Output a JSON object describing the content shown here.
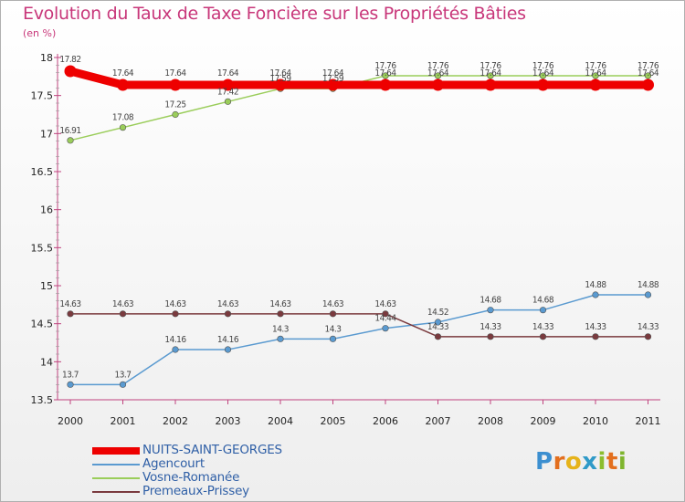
{
  "header": {
    "title": "Evolution du Taux de Taxe Foncière sur les Propriétés Bâties",
    "subtitle": "(en %)"
  },
  "logo": {
    "text": "Proxiti",
    "letter_colors": [
      "#3c8fd0",
      "#e36f1e",
      "#e6b31a",
      "#2f9ac8",
      "#8cbd2e",
      "#e36f1e",
      "#7fb52e"
    ]
  },
  "chart_data": {
    "type": "line",
    "title": "Evolution du Taux de Taxe Foncière sur les Propriétés Bâties",
    "ylabel": "(en %)",
    "xlabel": "",
    "ylim": [
      13.5,
      18
    ],
    "x": [
      "2000",
      "2001",
      "2002",
      "2003",
      "2004",
      "2005",
      "2006",
      "2007",
      "2008",
      "2009",
      "2010",
      "2011"
    ],
    "yticks": [
      "13.5",
      "14",
      "14.5",
      "15",
      "15.5",
      "16",
      "16.5",
      "17",
      "17.5",
      "18"
    ],
    "grid": false,
    "legend_position": "bottom-left",
    "series": [
      {
        "name": "Vosne-Romanée",
        "color": "#9acd5a",
        "values": [
          16.91,
          17.08,
          17.25,
          17.42,
          17.59,
          17.59,
          17.76,
          17.76,
          17.76,
          17.76,
          17.76,
          17.76
        ],
        "labels": [
          "16.91",
          "17.08",
          "17.25",
          "17.42",
          "17.59",
          "17.59",
          "17.76",
          "17.76",
          "17.76",
          "17.76",
          "17.76",
          "17.76"
        ]
      },
      {
        "name": "Agencourt",
        "color": "#5a9ad0",
        "values": [
          13.7,
          13.7,
          14.16,
          14.16,
          14.3,
          14.3,
          14.44,
          14.52,
          14.68,
          14.68,
          14.88,
          14.88
        ],
        "labels": [
          "13.7",
          "13.7",
          "14.16",
          "14.16",
          "14.3",
          "14.3",
          "14.44",
          "14.52",
          "14.68",
          "14.68",
          "14.88",
          "14.88"
        ]
      },
      {
        "name": "Premeaux-Prissey",
        "color": "#7a3a3e",
        "values": [
          14.63,
          14.63,
          14.63,
          14.63,
          14.63,
          14.63,
          14.63,
          14.33,
          14.33,
          14.33,
          14.33,
          14.33
        ],
        "labels": [
          "14.63",
          "14.63",
          "14.63",
          "14.63",
          "14.63",
          "14.63",
          "14.63",
          "14.33",
          "14.33",
          "14.33",
          "14.33",
          "14.33"
        ]
      },
      {
        "name": "NUITS-SAINT-GEORGES",
        "color": "#ee0000",
        "values": [
          17.82,
          17.64,
          17.64,
          17.64,
          17.64,
          17.64,
          17.64,
          17.64,
          17.64,
          17.64,
          17.64,
          17.64
        ],
        "labels": [
          "17.82",
          "17.64",
          "17.64",
          "17.64",
          "17.64",
          "17.64",
          "17.64",
          "17.64",
          "17.64",
          "17.64",
          "17.64",
          "17.64"
        ]
      }
    ],
    "legend": [
      {
        "name": "NUITS-SAINT-GEORGES",
        "color": "#ee0000"
      },
      {
        "name": "Agencourt",
        "color": "#5a9ad0"
      },
      {
        "name": "Vosne-Romanée",
        "color": "#9acd5a"
      },
      {
        "name": "Premeaux-Prissey",
        "color": "#7a3a3e"
      }
    ]
  }
}
